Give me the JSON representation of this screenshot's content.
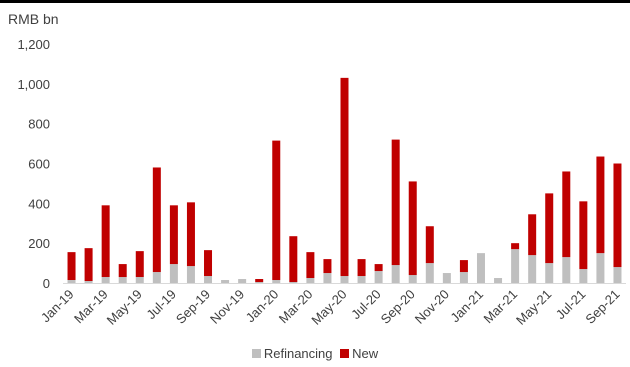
{
  "chart_data": {
    "type": "bar",
    "stacked": true,
    "unit_label": "RMB bn",
    "ylim": [
      0,
      1200
    ],
    "yticks": [
      0,
      200,
      400,
      600,
      800,
      1000,
      1200
    ],
    "ytick_labels": [
      "0",
      "200",
      "400",
      "600",
      "800",
      "1,000",
      "1,200"
    ],
    "categories": [
      "Jan-19",
      "Feb-19",
      "Mar-19",
      "Apr-19",
      "May-19",
      "Jun-19",
      "Jul-19",
      "Aug-19",
      "Sep-19",
      "Oct-19",
      "Nov-19",
      "Dec-19",
      "Jan-20",
      "Feb-20",
      "Mar-20",
      "Apr-20",
      "May-20",
      "Jun-20",
      "Jul-20",
      "Aug-20",
      "Sep-20",
      "Oct-20",
      "Nov-20",
      "Dec-20",
      "Jan-21",
      "Feb-21",
      "Mar-21",
      "Apr-21",
      "May-21",
      "Jun-21",
      "Jul-21",
      "Aug-21",
      "Sep-21"
    ],
    "x_tick_labels": [
      "Jan-19",
      "",
      "Mar-19",
      "",
      "May-19",
      "",
      "Jul-19",
      "",
      "Sep-19",
      "",
      "Nov-19",
      "",
      "Jan-20",
      "",
      "Mar-20",
      "",
      "May-20",
      "",
      "Jul-20",
      "",
      "Sep-20",
      "",
      "Nov-20",
      "",
      "Jan-21",
      "",
      "Mar-21",
      "",
      "May-21",
      "",
      "Jul-21",
      "",
      "Sep-21"
    ],
    "series": [
      {
        "name": "Refinancing",
        "color": "#bfbfbf",
        "values": [
          15,
          10,
          30,
          30,
          30,
          55,
          95,
          85,
          35,
          15,
          20,
          5,
          15,
          5,
          25,
          50,
          35,
          35,
          60,
          90,
          40,
          100,
          50,
          55,
          150,
          25,
          170,
          140,
          100,
          130,
          70,
          150,
          80
        ]
      },
      {
        "name": "New",
        "color": "#c00000",
        "values": [
          140,
          165,
          360,
          65,
          130,
          525,
          295,
          320,
          130,
          0,
          0,
          15,
          700,
          230,
          130,
          70,
          995,
          85,
          35,
          630,
          470,
          185,
          0,
          60,
          0,
          0,
          30,
          205,
          350,
          430,
          340,
          485,
          520
        ]
      }
    ],
    "legend_position": "bottom",
    "grid": false
  }
}
